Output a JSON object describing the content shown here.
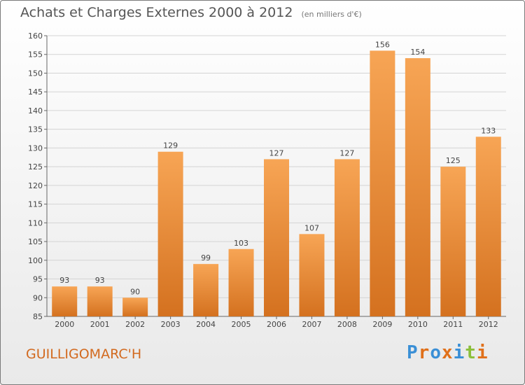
{
  "title": "Achats et Charges Externes 2000 à 2012",
  "subtitle": "(en milliers d'€)",
  "location": "GUILLIGOMARC'H",
  "brand": "Proxiti",
  "colors": {
    "bar_top": "#f7a555",
    "bar_bottom": "#d4711f",
    "grid": "#d4d4d4",
    "location": "#d2691e",
    "brand_letters": [
      "#3a8fd6",
      "#e0701a",
      "#3a8fd6",
      "#e0701a",
      "#3a8fd6",
      "#8bbf3a",
      "#e0701a"
    ]
  },
  "chart_data": {
    "type": "bar",
    "categories": [
      "2000",
      "2001",
      "2002",
      "2003",
      "2004",
      "2005",
      "2006",
      "2007",
      "2008",
      "2009",
      "2010",
      "2011",
      "2012"
    ],
    "values": [
      93,
      93,
      90,
      129,
      99,
      103,
      127,
      107,
      127,
      156,
      154,
      125,
      133
    ],
    "ylim": [
      85,
      160
    ],
    "yticks": [
      85,
      90,
      95,
      100,
      105,
      110,
      115,
      120,
      125,
      130,
      135,
      140,
      145,
      150,
      155,
      160
    ],
    "grid": true,
    "xlabel": "",
    "ylabel": ""
  }
}
